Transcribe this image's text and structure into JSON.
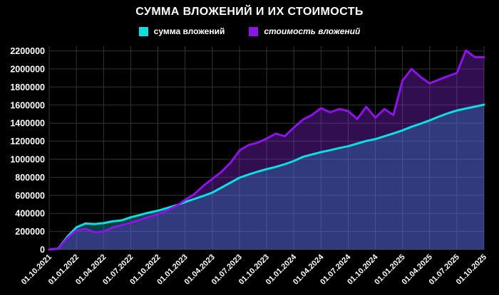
{
  "title": "СУММА ВЛОЖЕНИЙ И ИХ СТОИМОСТЬ",
  "legend": {
    "items": [
      {
        "label": "сумма вложений",
        "color": "#0ae0e0",
        "style": "normal"
      },
      {
        "label": "стоимость вложений",
        "color": "#8e12ea",
        "style": "italic"
      }
    ]
  },
  "chart_data": {
    "type": "area",
    "title": "СУММА ВЛОЖЕНИЙ И ИХ СТОИМОСТЬ",
    "background": "#000000",
    "grid": true,
    "grid_color": "#333333",
    "legend_position": "top",
    "x_unit": "month",
    "x_start": "01.10.2021",
    "x_end": "01.10.2025",
    "x_step_months": 1,
    "x_tick_labels": [
      "01.10.2021",
      "01.01.2022",
      "01.04.2022",
      "01.07.2022",
      "01.10.2022",
      "01.01.2023",
      "01.04.2023",
      "01.07.2023",
      "01.10.2023",
      "01.01.2024",
      "01.04.2024",
      "01.07.2024",
      "01.10.2024",
      "01.01.2025",
      "01.04.2025",
      "01.07.2025",
      "01.10.2025"
    ],
    "ylim": [
      0,
      2200000
    ],
    "y_ticks": [
      0,
      200000,
      400000,
      600000,
      800000,
      1000000,
      1200000,
      1400000,
      1600000,
      1800000,
      2000000,
      2200000
    ],
    "series": [
      {
        "name": "сумма вложений",
        "line_color": "#0ae0e0",
        "fill_color": "rgba(0,226,226,0.30)",
        "values": [
          0,
          10000,
          140000,
          245000,
          288000,
          283000,
          292000,
          312000,
          323000,
          357000,
          383000,
          409000,
          430000,
          459000,
          488000,
          525000,
          559000,
          593000,
          630000,
          685000,
          740000,
          795000,
          830000,
          862000,
          890000,
          915000,
          945000,
          980000,
          1026000,
          1053000,
          1079000,
          1100000,
          1124000,
          1144000,
          1173000,
          1202000,
          1223000,
          1254000,
          1286000,
          1320000,
          1360000,
          1394000,
          1431000,
          1472000,
          1509000,
          1540000,
          1562000,
          1583000,
          1605000
        ]
      },
      {
        "name": "стоимость вложений",
        "line_color": "#8e12ea",
        "fill_color": "rgba(140,40,230,0.35)",
        "values": [
          0,
          8000,
          126000,
          213000,
          231000,
          192000,
          199000,
          244000,
          270000,
          297000,
          328000,
          362000,
          390000,
          433000,
          480000,
          549000,
          612000,
          703000,
          782000,
          860000,
          960000,
          1097000,
          1157000,
          1183000,
          1228000,
          1283000,
          1255000,
          1350000,
          1438000,
          1490000,
          1565000,
          1520000,
          1556000,
          1535000,
          1445000,
          1580000,
          1460000,
          1555000,
          1490000,
          1870000,
          2000000,
          1910000,
          1840000,
          1880000,
          1920000,
          1955000,
          2205000,
          2130000,
          2130000
        ]
      }
    ]
  }
}
